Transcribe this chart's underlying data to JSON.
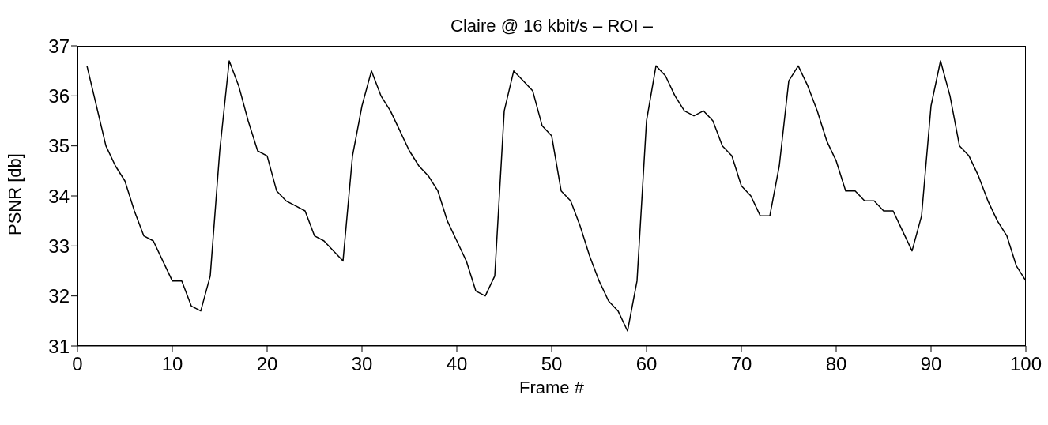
{
  "chart_data": {
    "type": "line",
    "title": "Claire @ 16 kbit/s – ROI –",
    "xlabel": "Frame #",
    "ylabel": "PSNR [db]",
    "x": [
      1,
      2,
      3,
      4,
      5,
      6,
      7,
      8,
      9,
      10,
      11,
      12,
      13,
      14,
      15,
      16,
      17,
      18,
      19,
      20,
      21,
      22,
      23,
      24,
      25,
      26,
      27,
      28,
      29,
      30,
      31,
      32,
      33,
      34,
      35,
      36,
      37,
      38,
      39,
      40,
      41,
      42,
      43,
      44,
      45,
      46,
      47,
      48,
      49,
      50,
      51,
      52,
      53,
      54,
      55,
      56,
      57,
      58,
      59,
      60,
      61,
      62,
      63,
      64,
      65,
      66,
      67,
      68,
      69,
      70,
      71,
      72,
      73,
      74,
      75,
      76,
      77,
      78,
      79,
      80,
      81,
      82,
      83,
      84,
      85,
      86,
      87,
      88,
      89,
      90,
      91,
      92,
      93,
      94,
      95,
      96,
      97,
      98,
      99,
      100
    ],
    "series": [
      {
        "color": "#000000",
        "values": [
          36.6,
          35.8,
          35.0,
          34.6,
          34.3,
          33.7,
          33.2,
          33.1,
          32.7,
          32.3,
          32.3,
          31.8,
          31.7,
          32.4,
          34.9,
          36.7,
          36.2,
          35.5,
          34.9,
          34.8,
          34.1,
          33.9,
          33.8,
          33.7,
          33.2,
          33.1,
          32.9,
          32.7,
          34.8,
          35.8,
          36.5,
          36.0,
          35.7,
          35.3,
          34.9,
          34.6,
          34.4,
          34.1,
          33.5,
          33.1,
          32.7,
          32.1,
          32.0,
          32.4,
          35.7,
          36.5,
          36.3,
          36.1,
          35.4,
          35.2,
          34.1,
          33.9,
          33.4,
          32.8,
          32.3,
          31.9,
          31.7,
          31.3,
          32.3,
          35.5,
          36.6,
          36.4,
          36.0,
          35.7,
          35.6,
          35.7,
          35.5,
          35.0,
          34.8,
          34.2,
          34.0,
          33.6,
          33.6,
          34.6,
          36.3,
          36.6,
          36.2,
          35.7,
          35.1,
          34.7,
          34.1,
          34.1,
          33.9,
          33.9,
          33.7,
          33.7,
          33.3,
          32.9,
          33.6,
          35.8,
          36.7,
          36.0,
          35.0,
          34.8,
          34.4,
          33.9,
          33.5,
          33.2,
          32.6,
          32.3
        ]
      }
    ],
    "xlim": [
      0,
      100
    ],
    "xticks": [
      0,
      10,
      20,
      30,
      40,
      50,
      60,
      70,
      80,
      90,
      100
    ],
    "ylim": [
      31,
      37
    ],
    "yticks": [
      31,
      32,
      33,
      34,
      35,
      36,
      37
    ],
    "grid": false,
    "legend": false,
    "marker": "none",
    "line_style": "solid"
  }
}
